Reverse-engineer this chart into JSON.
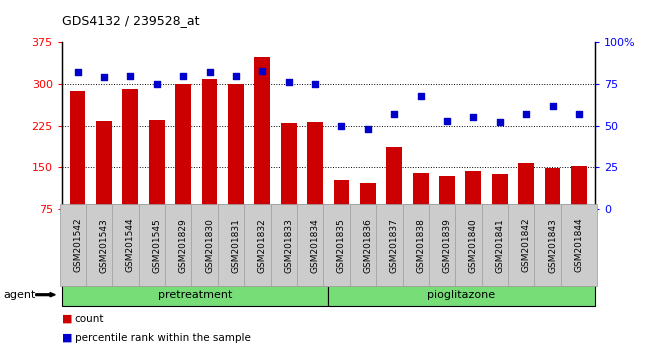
{
  "title": "GDS4132 / 239528_at",
  "categories": [
    "GSM201542",
    "GSM201543",
    "GSM201544",
    "GSM201545",
    "GSM201829",
    "GSM201830",
    "GSM201831",
    "GSM201832",
    "GSM201833",
    "GSM201834",
    "GSM201835",
    "GSM201836",
    "GSM201837",
    "GSM201838",
    "GSM201839",
    "GSM201840",
    "GSM201841",
    "GSM201842",
    "GSM201843",
    "GSM201844"
  ],
  "bar_values": [
    287,
    233,
    291,
    236,
    300,
    309,
    300,
    348,
    230,
    232,
    127,
    122,
    186,
    140,
    135,
    143,
    137,
    158,
    148,
    153
  ],
  "scatter_values": [
    82,
    79,
    80,
    75,
    80,
    82,
    80,
    83,
    76,
    75,
    50,
    48,
    57,
    68,
    53,
    55,
    52,
    57,
    62,
    57
  ],
  "bar_color": "#cc0000",
  "scatter_color": "#0000cc",
  "ylim_left": [
    75,
    375
  ],
  "ylim_right": [
    0,
    100
  ],
  "yticks_left": [
    75,
    150,
    225,
    300,
    375
  ],
  "yticks_right": [
    0,
    25,
    50,
    75,
    100
  ],
  "ytick_labels_right": [
    "0",
    "25",
    "50",
    "75",
    "100%"
  ],
  "agent_label": "agent",
  "group1_label": "pretreatment",
  "group2_label": "pioglitazone",
  "n_group1": 10,
  "n_total": 20,
  "legend_count": "count",
  "legend_pct": "percentile rank within the sample",
  "plot_bg_color": "#ffffff",
  "group_bg_color": "#77dd77",
  "tick_bg_color": "#cccccc",
  "bar_width": 0.6
}
